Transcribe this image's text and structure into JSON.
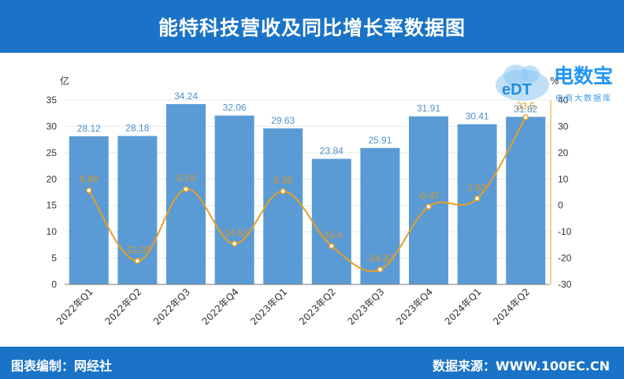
{
  "header": {
    "title": "能特科技营收及同比增长率数据图"
  },
  "footer": {
    "editor": "图表编制：网经社",
    "source": "数据来源：WWW.100EC.CN"
  },
  "watermark": {
    "name": "电数宝",
    "tagline": "电商大数据库",
    "mark": "eDT"
  },
  "colors": {
    "header": "#1a73c6",
    "bar": "#5b9bd5",
    "line": "#e6a023",
    "bar_label": "#4f8fc9",
    "line_label": "#d9952a"
  },
  "chart_data": {
    "type": "bar",
    "categories": [
      "2022年Q1",
      "2022年Q2",
      "2022年Q3",
      "2022年Q4",
      "2023年Q1",
      "2023年Q2",
      "2023年Q3",
      "2023年Q4",
      "2024年Q1",
      "2024年Q2"
    ],
    "series": [
      {
        "axis": "left",
        "type": "bar",
        "values": [
          28.12,
          28.18,
          34.24,
          32.06,
          29.63,
          23.84,
          25.91,
          31.91,
          30.41,
          31.82
        ]
      },
      {
        "axis": "right",
        "type": "line",
        "values": [
          5.69,
          -21.05,
          6.19,
          -14.52,
          5.36,
          -15.4,
          -24.32,
          -0.47,
          2.63,
          33.5
        ],
        "labels": [
          "5.69",
          "-21.05",
          "6.19",
          "-14.52",
          "5.36",
          "-15.4",
          "-24.32",
          "-0.47",
          "2.63",
          "33.5"
        ]
      }
    ],
    "y_left": {
      "unit": "亿",
      "ylim": [
        0,
        35
      ],
      "ticks": [
        0,
        5,
        10,
        15,
        20,
        25,
        30,
        35
      ]
    },
    "y_right": {
      "unit": "%",
      "ylim": [
        -30,
        40
      ],
      "ticks": [
        -30,
        -20,
        -10,
        0,
        10,
        20,
        30,
        40
      ]
    },
    "grid": true
  }
}
